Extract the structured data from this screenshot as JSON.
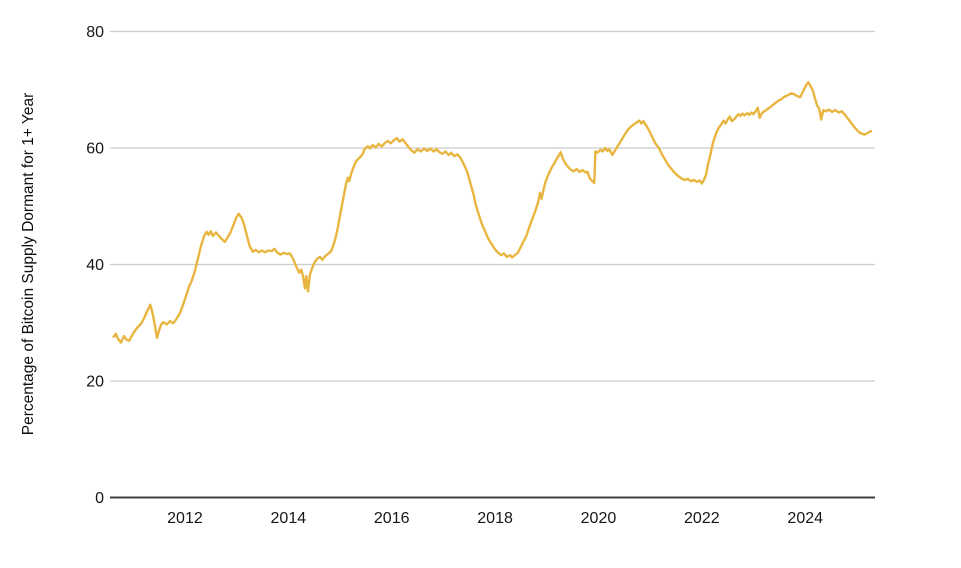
{
  "chart_data": {
    "type": "line",
    "title": "",
    "xlabel": "",
    "ylabel": "Percentage of Bitcoin Supply Dormant for 1+ Year",
    "legend": "none",
    "grid": "horizontal",
    "xlim": [
      2010.55,
      2025.35
    ],
    "ylim": [
      0,
      80
    ],
    "x_ticks": [
      "2012",
      "2014",
      "2016",
      "2018",
      "2020",
      "2022",
      "2024"
    ],
    "x_tick_years": [
      2012,
      2014,
      2016,
      2018,
      2020,
      2022,
      2024
    ],
    "y_ticks": [
      "0",
      "20",
      "40",
      "60",
      "80"
    ],
    "y_tick_values": [
      0,
      20,
      40,
      60,
      80
    ],
    "line_color": "#E8B640",
    "axis_color": "#3F3F3F",
    "grid_color": "#CCCCCC",
    "tick_label_color": "#161616",
    "background_color": "#FFFFFF",
    "series": [
      {
        "name": "Percentage of Bitcoin Supply Dormant for 1+ Year",
        "points": [
          [
            2010.62,
            27.6
          ],
          [
            2010.66,
            28.1
          ],
          [
            2010.7,
            27.3
          ],
          [
            2010.76,
            26.6
          ],
          [
            2010.82,
            27.7
          ],
          [
            2010.87,
            27.1
          ],
          [
            2010.92,
            26.9
          ],
          [
            2011.0,
            28.2
          ],
          [
            2011.08,
            29.2
          ],
          [
            2011.15,
            29.8
          ],
          [
            2011.21,
            30.8
          ],
          [
            2011.27,
            32.0
          ],
          [
            2011.33,
            33.1
          ],
          [
            2011.38,
            31.4
          ],
          [
            2011.42,
            29.4
          ],
          [
            2011.46,
            27.4
          ],
          [
            2011.5,
            28.7
          ],
          [
            2011.54,
            29.7
          ],
          [
            2011.58,
            30.1
          ],
          [
            2011.65,
            29.7
          ],
          [
            2011.71,
            30.3
          ],
          [
            2011.77,
            29.9
          ],
          [
            2011.83,
            30.6
          ],
          [
            2011.9,
            31.6
          ],
          [
            2011.96,
            33.0
          ],
          [
            2012.02,
            34.6
          ],
          [
            2012.08,
            36.2
          ],
          [
            2012.13,
            37.2
          ],
          [
            2012.19,
            38.8
          ],
          [
            2012.25,
            41.0
          ],
          [
            2012.31,
            43.2
          ],
          [
            2012.37,
            44.9
          ],
          [
            2012.42,
            45.6
          ],
          [
            2012.46,
            45.1
          ],
          [
            2012.5,
            45.7
          ],
          [
            2012.54,
            44.9
          ],
          [
            2012.6,
            45.5
          ],
          [
            2012.65,
            45.0
          ],
          [
            2012.71,
            44.4
          ],
          [
            2012.77,
            43.9
          ],
          [
            2012.83,
            44.7
          ],
          [
            2012.88,
            45.5
          ],
          [
            2012.94,
            46.8
          ],
          [
            2012.99,
            48.0
          ],
          [
            2013.04,
            48.7
          ],
          [
            2013.09,
            48.1
          ],
          [
            2013.14,
            47.0
          ],
          [
            2013.19,
            45.2
          ],
          [
            2013.25,
            43.2
          ],
          [
            2013.31,
            42.2
          ],
          [
            2013.37,
            42.5
          ],
          [
            2013.43,
            42.1
          ],
          [
            2013.49,
            42.4
          ],
          [
            2013.55,
            42.1
          ],
          [
            2013.61,
            42.4
          ],
          [
            2013.68,
            42.3
          ],
          [
            2013.73,
            42.7
          ],
          [
            2013.79,
            42.0
          ],
          [
            2013.85,
            41.7
          ],
          [
            2013.91,
            42.0
          ],
          [
            2013.97,
            41.8
          ],
          [
            2014.03,
            41.9
          ],
          [
            2014.09,
            41.0
          ],
          [
            2014.15,
            39.7
          ],
          [
            2014.21,
            38.6
          ],
          [
            2014.25,
            39.1
          ],
          [
            2014.29,
            37.8
          ],
          [
            2014.32,
            35.9
          ],
          [
            2014.35,
            38.0
          ],
          [
            2014.38,
            35.4
          ],
          [
            2014.42,
            38.3
          ],
          [
            2014.46,
            39.4
          ],
          [
            2014.51,
            40.4
          ],
          [
            2014.56,
            41.0
          ],
          [
            2014.61,
            41.3
          ],
          [
            2014.66,
            40.8
          ],
          [
            2014.72,
            41.5
          ],
          [
            2014.78,
            41.9
          ],
          [
            2014.83,
            42.3
          ],
          [
            2014.88,
            43.5
          ],
          [
            2014.92,
            44.8
          ],
          [
            2014.96,
            46.4
          ],
          [
            2015.0,
            48.4
          ],
          [
            2015.04,
            50.3
          ],
          [
            2015.08,
            52.2
          ],
          [
            2015.12,
            53.9
          ],
          [
            2015.15,
            54.9
          ],
          [
            2015.18,
            54.3
          ],
          [
            2015.22,
            55.7
          ],
          [
            2015.27,
            56.9
          ],
          [
            2015.31,
            57.7
          ],
          [
            2015.36,
            58.2
          ],
          [
            2015.4,
            58.5
          ],
          [
            2015.44,
            59.0
          ],
          [
            2015.48,
            59.9
          ],
          [
            2015.54,
            60.3
          ],
          [
            2015.58,
            59.9
          ],
          [
            2015.63,
            60.5
          ],
          [
            2015.69,
            60.1
          ],
          [
            2015.75,
            60.7
          ],
          [
            2015.81,
            60.3
          ],
          [
            2015.87,
            60.9
          ],
          [
            2015.92,
            61.2
          ],
          [
            2015.98,
            60.8
          ],
          [
            2016.04,
            61.3
          ],
          [
            2016.1,
            61.7
          ],
          [
            2016.15,
            61.1
          ],
          [
            2016.21,
            61.5
          ],
          [
            2016.27,
            60.8
          ],
          [
            2016.33,
            60.1
          ],
          [
            2016.38,
            59.6
          ],
          [
            2016.44,
            59.2
          ],
          [
            2016.5,
            59.8
          ],
          [
            2016.56,
            59.4
          ],
          [
            2016.63,
            59.9
          ],
          [
            2016.69,
            59.5
          ],
          [
            2016.75,
            59.9
          ],
          [
            2016.81,
            59.4
          ],
          [
            2016.87,
            59.8
          ],
          [
            2016.92,
            59.3
          ],
          [
            2016.98,
            59.0
          ],
          [
            2017.04,
            59.4
          ],
          [
            2017.1,
            58.8
          ],
          [
            2017.15,
            59.2
          ],
          [
            2017.21,
            58.6
          ],
          [
            2017.27,
            58.9
          ],
          [
            2017.33,
            58.3
          ],
          [
            2017.4,
            57.1
          ],
          [
            2017.46,
            55.9
          ],
          [
            2017.52,
            54.0
          ],
          [
            2017.58,
            52.1
          ],
          [
            2017.63,
            50.1
          ],
          [
            2017.69,
            48.4
          ],
          [
            2017.75,
            46.8
          ],
          [
            2017.81,
            45.6
          ],
          [
            2017.87,
            44.4
          ],
          [
            2017.94,
            43.4
          ],
          [
            2018.0,
            42.6
          ],
          [
            2018.06,
            42.0
          ],
          [
            2018.12,
            41.6
          ],
          [
            2018.17,
            41.9
          ],
          [
            2018.23,
            41.3
          ],
          [
            2018.29,
            41.6
          ],
          [
            2018.33,
            41.2
          ],
          [
            2018.38,
            41.6
          ],
          [
            2018.44,
            42.0
          ],
          [
            2018.48,
            42.7
          ],
          [
            2018.54,
            43.8
          ],
          [
            2018.6,
            44.8
          ],
          [
            2018.65,
            46.1
          ],
          [
            2018.71,
            47.6
          ],
          [
            2018.77,
            49.0
          ],
          [
            2018.83,
            50.6
          ],
          [
            2018.87,
            52.3
          ],
          [
            2018.9,
            51.3
          ],
          [
            2018.94,
            53.0
          ],
          [
            2018.98,
            54.3
          ],
          [
            2019.02,
            55.2
          ],
          [
            2019.06,
            56.0
          ],
          [
            2019.1,
            56.7
          ],
          [
            2019.15,
            57.4
          ],
          [
            2019.19,
            58.1
          ],
          [
            2019.23,
            58.7
          ],
          [
            2019.27,
            59.3
          ],
          [
            2019.31,
            58.2
          ],
          [
            2019.35,
            57.5
          ],
          [
            2019.4,
            56.9
          ],
          [
            2019.46,
            56.3
          ],
          [
            2019.52,
            56.0
          ],
          [
            2019.58,
            56.4
          ],
          [
            2019.63,
            55.9
          ],
          [
            2019.69,
            56.2
          ],
          [
            2019.75,
            55.8
          ],
          [
            2019.79,
            55.9
          ],
          [
            2019.83,
            54.8
          ],
          [
            2019.88,
            54.3
          ],
          [
            2019.92,
            54.0
          ],
          [
            2019.94,
            59.4
          ],
          [
            2019.98,
            59.2
          ],
          [
            2020.04,
            59.7
          ],
          [
            2020.08,
            59.4
          ],
          [
            2020.13,
            60.0
          ],
          [
            2020.17,
            59.5
          ],
          [
            2020.21,
            59.8
          ],
          [
            2020.27,
            58.8
          ],
          [
            2020.33,
            59.7
          ],
          [
            2020.4,
            60.7
          ],
          [
            2020.48,
            61.9
          ],
          [
            2020.56,
            63.0
          ],
          [
            2020.63,
            63.7
          ],
          [
            2020.71,
            64.2
          ],
          [
            2020.79,
            64.7
          ],
          [
            2020.83,
            64.2
          ],
          [
            2020.87,
            64.6
          ],
          [
            2020.92,
            63.9
          ],
          [
            2020.98,
            63.0
          ],
          [
            2021.04,
            61.9
          ],
          [
            2021.1,
            60.8
          ],
          [
            2021.17,
            60.0
          ],
          [
            2021.23,
            58.9
          ],
          [
            2021.29,
            58.0
          ],
          [
            2021.35,
            57.1
          ],
          [
            2021.42,
            56.3
          ],
          [
            2021.48,
            55.7
          ],
          [
            2021.54,
            55.2
          ],
          [
            2021.6,
            54.8
          ],
          [
            2021.67,
            54.5
          ],
          [
            2021.73,
            54.7
          ],
          [
            2021.79,
            54.3
          ],
          [
            2021.85,
            54.5
          ],
          [
            2021.9,
            54.2
          ],
          [
            2021.96,
            54.4
          ],
          [
            2022.0,
            53.9
          ],
          [
            2022.04,
            54.5
          ],
          [
            2022.08,
            55.4
          ],
          [
            2022.12,
            57.2
          ],
          [
            2022.17,
            59.0
          ],
          [
            2022.21,
            60.7
          ],
          [
            2022.25,
            61.9
          ],
          [
            2022.29,
            62.8
          ],
          [
            2022.33,
            63.5
          ],
          [
            2022.38,
            64.1
          ],
          [
            2022.42,
            64.7
          ],
          [
            2022.46,
            64.2
          ],
          [
            2022.5,
            64.9
          ],
          [
            2022.54,
            65.4
          ],
          [
            2022.58,
            64.6
          ],
          [
            2022.63,
            65.0
          ],
          [
            2022.67,
            65.4
          ],
          [
            2022.71,
            65.8
          ],
          [
            2022.75,
            65.5
          ],
          [
            2022.79,
            65.9
          ],
          [
            2022.83,
            65.6
          ],
          [
            2022.88,
            66.0
          ],
          [
            2022.92,
            65.7
          ],
          [
            2022.96,
            66.1
          ],
          [
            2023.0,
            65.8
          ],
          [
            2023.04,
            66.3
          ],
          [
            2023.08,
            66.9
          ],
          [
            2023.12,
            65.2
          ],
          [
            2023.17,
            66.1
          ],
          [
            2023.23,
            66.4
          ],
          [
            2023.29,
            66.8
          ],
          [
            2023.35,
            67.2
          ],
          [
            2023.42,
            67.7
          ],
          [
            2023.48,
            68.1
          ],
          [
            2023.54,
            68.4
          ],
          [
            2023.6,
            68.8
          ],
          [
            2023.67,
            69.1
          ],
          [
            2023.73,
            69.4
          ],
          [
            2023.79,
            69.2
          ],
          [
            2023.85,
            68.9
          ],
          [
            2023.9,
            68.7
          ],
          [
            2023.96,
            69.8
          ],
          [
            2024.02,
            70.8
          ],
          [
            2024.06,
            71.3
          ],
          [
            2024.1,
            70.7
          ],
          [
            2024.15,
            69.8
          ],
          [
            2024.19,
            68.5
          ],
          [
            2024.23,
            67.3
          ],
          [
            2024.27,
            66.8
          ],
          [
            2024.31,
            64.9
          ],
          [
            2024.35,
            66.5
          ],
          [
            2024.4,
            66.3
          ],
          [
            2024.46,
            66.6
          ],
          [
            2024.52,
            66.2
          ],
          [
            2024.58,
            66.5
          ],
          [
            2024.65,
            66.1
          ],
          [
            2024.71,
            66.3
          ],
          [
            2024.77,
            65.7
          ],
          [
            2024.83,
            65.0
          ],
          [
            2024.9,
            64.2
          ],
          [
            2024.96,
            63.5
          ],
          [
            2025.02,
            62.9
          ],
          [
            2025.08,
            62.5
          ],
          [
            2025.15,
            62.3
          ],
          [
            2025.21,
            62.6
          ],
          [
            2025.27,
            62.9
          ]
        ]
      }
    ]
  }
}
